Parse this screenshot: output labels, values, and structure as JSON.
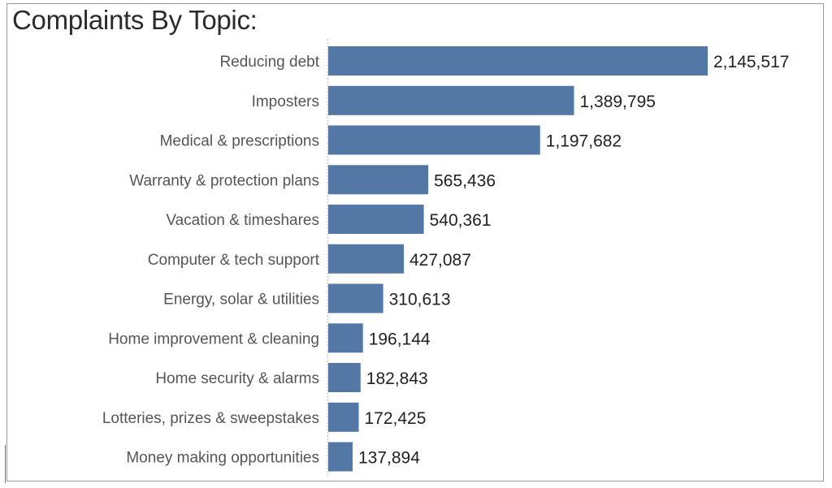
{
  "chart_data": {
    "type": "bar",
    "orientation": "horizontal",
    "title": "Complaints By Topic:",
    "xlabel": "",
    "ylabel": "",
    "bar_color": "#5378a6",
    "categories": [
      "Reducing debt",
      "Imposters",
      "Medical & prescriptions",
      "Warranty & protection plans",
      "Vacation & timeshares",
      "Computer & tech support",
      "Energy, solar & utilities",
      "Home improvement & cleaning",
      "Home security & alarms",
      "Lotteries, prizes & sweepstakes",
      "Money making opportunities"
    ],
    "values": [
      2145517,
      1389795,
      1197682,
      565436,
      540361,
      427087,
      310613,
      196144,
      182843,
      172425,
      137894
    ],
    "value_labels": [
      "2,145,517",
      "1,389,795",
      "1,197,682",
      "565,436",
      "540,361",
      "427,087",
      "310,613",
      "196,144",
      "182,843",
      "172,425",
      "137,894"
    ],
    "xlim": [
      0,
      2145517
    ],
    "grid": false,
    "legend": "none"
  }
}
